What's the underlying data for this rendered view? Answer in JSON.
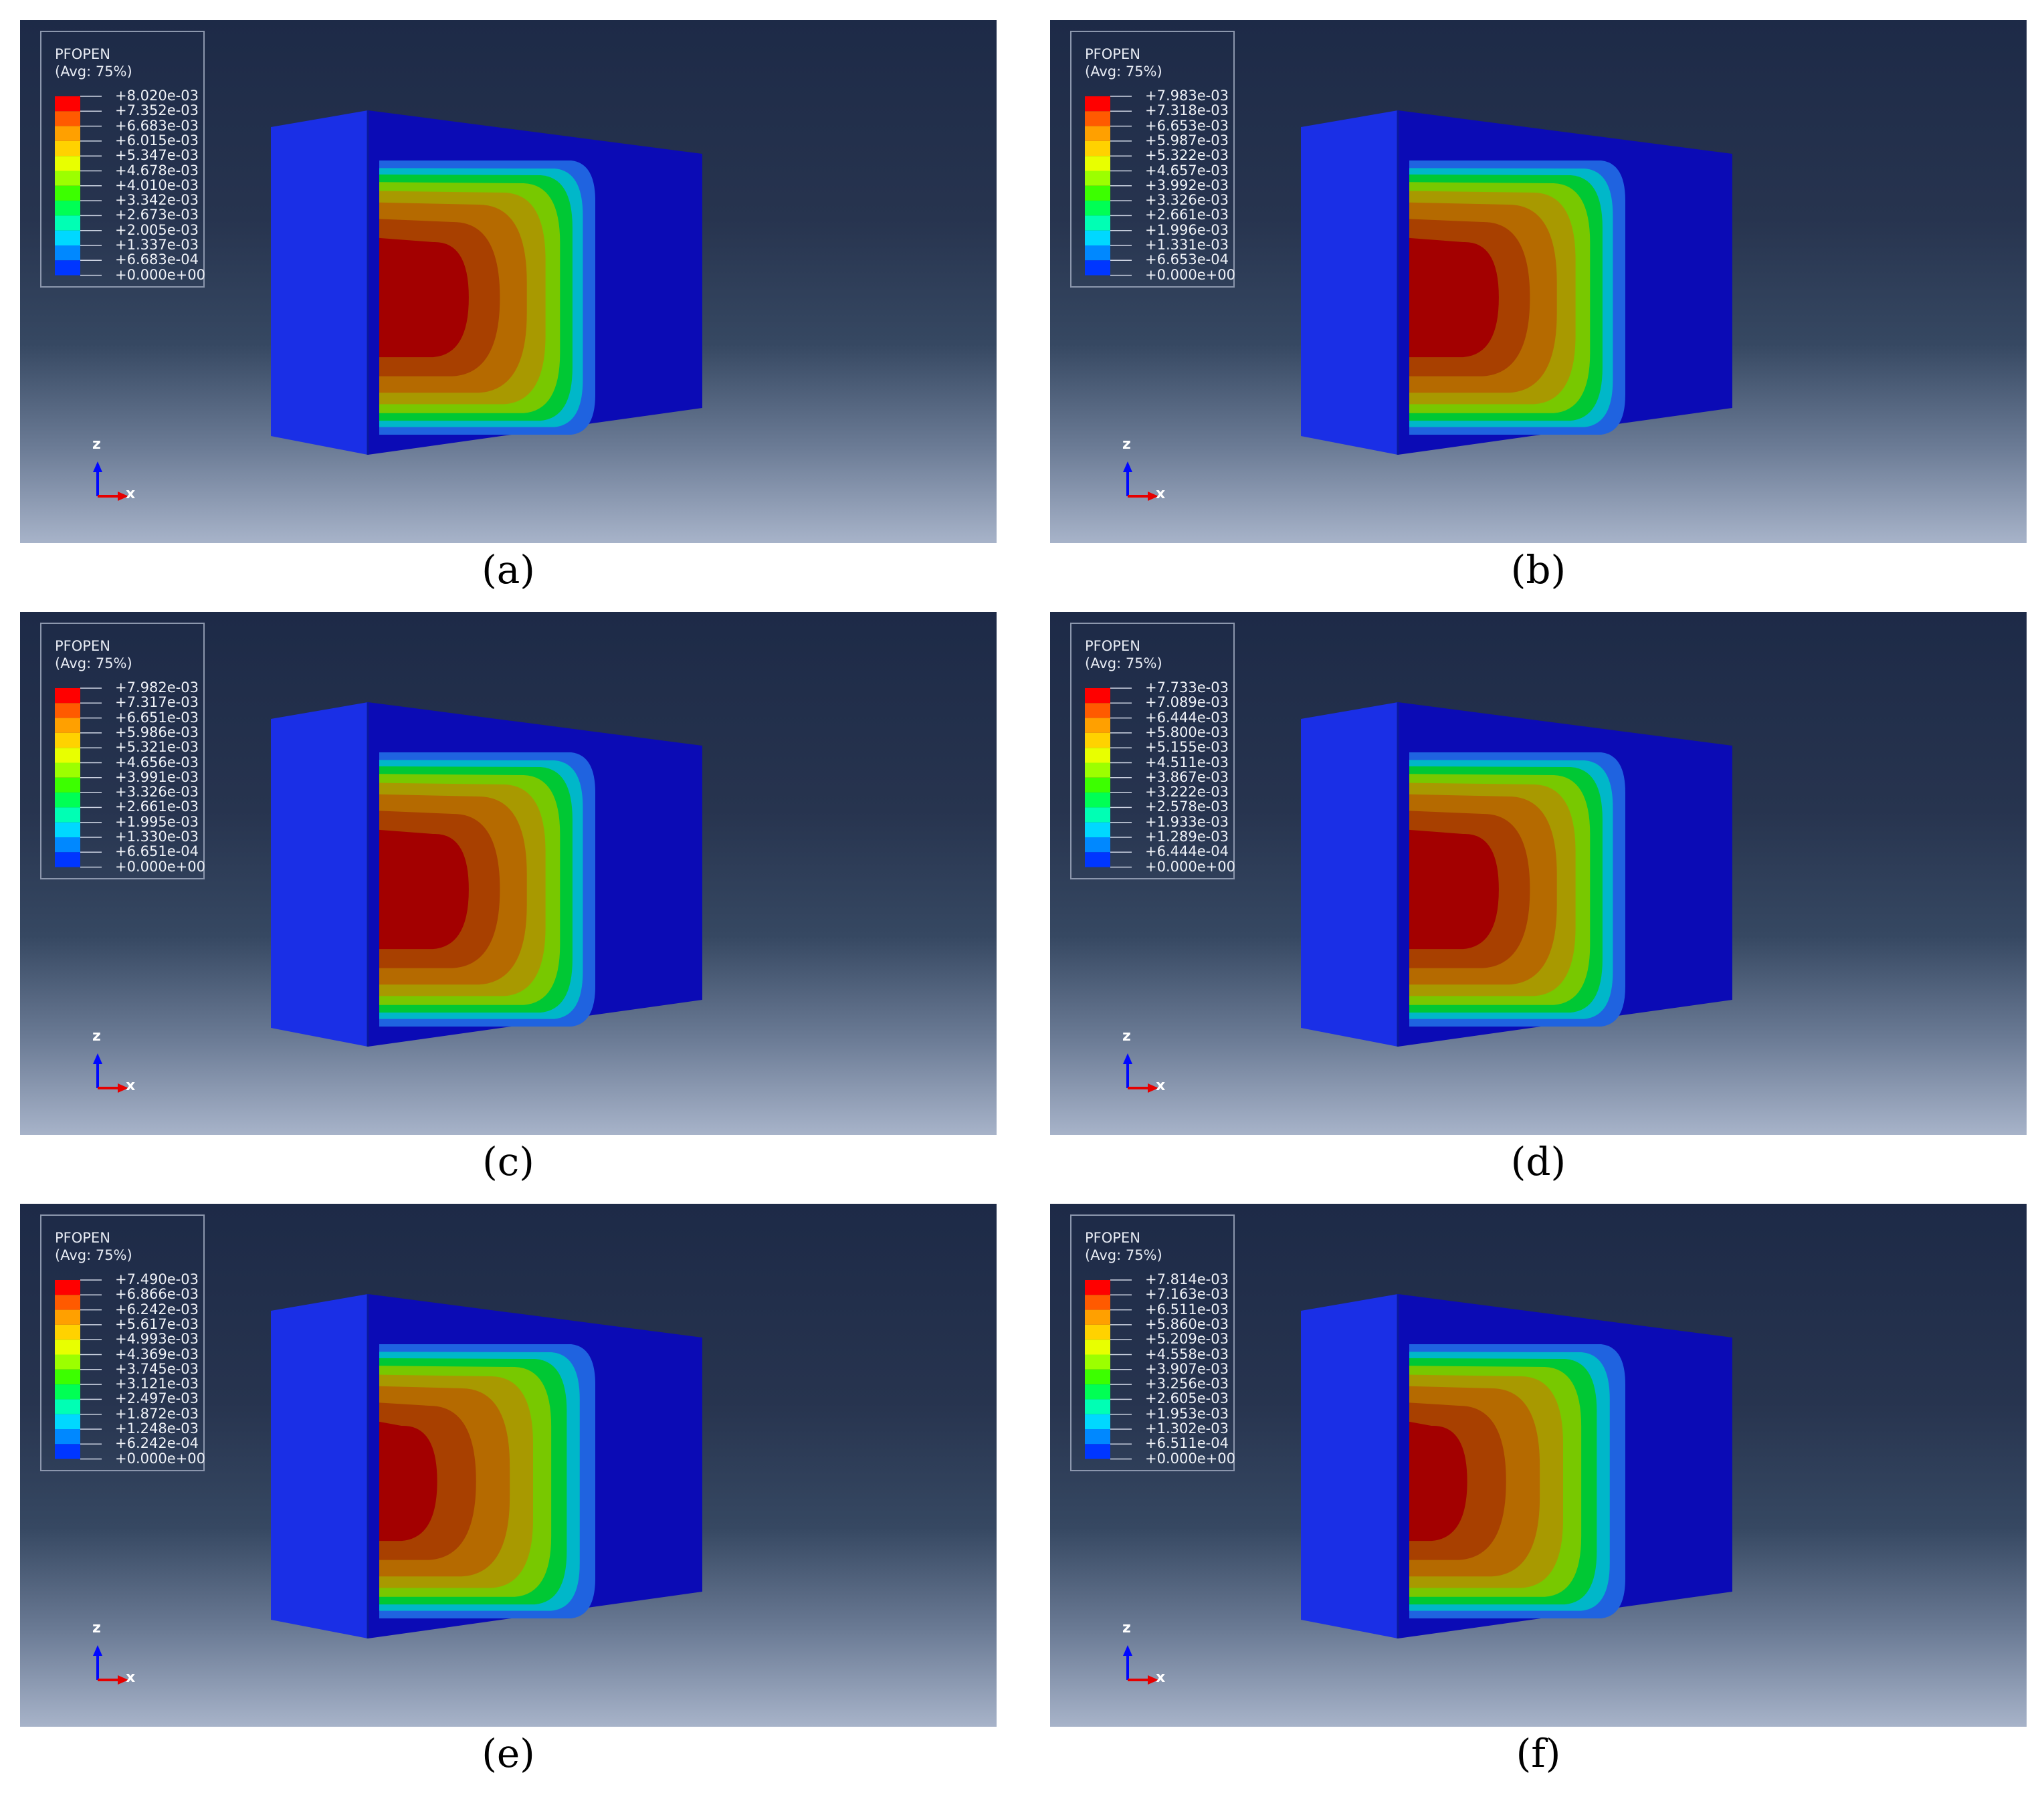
{
  "figure": {
    "panels": [
      {
        "id": "a",
        "caption": "(a)",
        "legend": {
          "variable": "PFOPEN",
          "averaging": "(Avg: 75%)",
          "ticks": [
            "+8.020e-03",
            "+7.352e-03",
            "+6.683e-03",
            "+6.015e-03",
            "+5.347e-03",
            "+4.678e-03",
            "+4.010e-03",
            "+3.342e-03",
            "+2.673e-03",
            "+2.005e-03",
            "+1.337e-03",
            "+6.683e-04",
            "+0.000e+00"
          ]
        },
        "axes": {
          "vertical": "z",
          "horizontal": "x"
        }
      },
      {
        "id": "b",
        "caption": "(b)",
        "legend": {
          "variable": "PFOPEN",
          "averaging": "(Avg: 75%)",
          "ticks": [
            "+7.983e-03",
            "+7.318e-03",
            "+6.653e-03",
            "+5.987e-03",
            "+5.322e-03",
            "+4.657e-03",
            "+3.992e-03",
            "+3.326e-03",
            "+2.661e-03",
            "+1.996e-03",
            "+1.331e-03",
            "+6.653e-04",
            "+0.000e+00"
          ]
        },
        "axes": {
          "vertical": "z",
          "horizontal": "x"
        }
      },
      {
        "id": "c",
        "caption": "(c)",
        "legend": {
          "variable": "PFOPEN",
          "averaging": "(Avg: 75%)",
          "ticks": [
            "+7.982e-03",
            "+7.317e-03",
            "+6.651e-03",
            "+5.986e-03",
            "+5.321e-03",
            "+4.656e-03",
            "+3.991e-03",
            "+3.326e-03",
            "+2.661e-03",
            "+1.995e-03",
            "+1.330e-03",
            "+6.651e-04",
            "+0.000e+00"
          ]
        },
        "axes": {
          "vertical": "z",
          "horizontal": "x"
        }
      },
      {
        "id": "d",
        "caption": "(d)",
        "legend": {
          "variable": "PFOPEN",
          "averaging": "(Avg: 75%)",
          "ticks": [
            "+7.733e-03",
            "+7.089e-03",
            "+6.444e-03",
            "+5.800e-03",
            "+5.155e-03",
            "+4.511e-03",
            "+3.867e-03",
            "+3.222e-03",
            "+2.578e-03",
            "+1.933e-03",
            "+1.289e-03",
            "+6.444e-04",
            "+0.000e+00"
          ]
        },
        "axes": {
          "vertical": "z",
          "horizontal": "x"
        }
      },
      {
        "id": "e",
        "caption": "(e)",
        "legend": {
          "variable": "PFOPEN",
          "averaging": "(Avg: 75%)",
          "ticks": [
            "+7.490e-03",
            "+6.866e-03",
            "+6.242e-03",
            "+5.617e-03",
            "+4.993e-03",
            "+4.369e-03",
            "+3.745e-03",
            "+3.121e-03",
            "+2.497e-03",
            "+1.872e-03",
            "+1.248e-03",
            "+6.242e-04",
            "+0.000e+00"
          ]
        },
        "axes": {
          "vertical": "z",
          "horizontal": "x"
        }
      },
      {
        "id": "f",
        "caption": "(f)",
        "legend": {
          "variable": "PFOPEN",
          "averaging": "(Avg: 75%)",
          "ticks": [
            "+7.814e-03",
            "+7.163e-03",
            "+6.511e-03",
            "+5.860e-03",
            "+5.209e-03",
            "+4.558e-03",
            "+3.907e-03",
            "+3.256e-03",
            "+2.605e-03",
            "+1.953e-03",
            "+1.302e-03",
            "+6.511e-04",
            "+0.000e+00"
          ]
        },
        "axes": {
          "vertical": "z",
          "horizontal": "x"
        }
      }
    ],
    "colormap": [
      "#ff0000",
      "#ff5a00",
      "#ffa000",
      "#ffd200",
      "#e8ff00",
      "#9cff00",
      "#3cff00",
      "#00ff54",
      "#00ffb4",
      "#00d8ff",
      "#0088ff",
      "#0036ff",
      "#0000ff"
    ],
    "colors": {
      "model_face": "#1a2fe6",
      "model_side": "#0b0bb5",
      "band_outer_blue": "#1f63e0",
      "band_cyan": "#00b7c9",
      "band_green": "#00c834",
      "band_yellowgreen": "#78c800",
      "band_olive": "#a89900",
      "band_orange": "#b56a00",
      "band_darkorange": "#a84000",
      "core_red": "#a30000",
      "axis_z": "#0008ff",
      "axis_x": "#e60000"
    }
  }
}
